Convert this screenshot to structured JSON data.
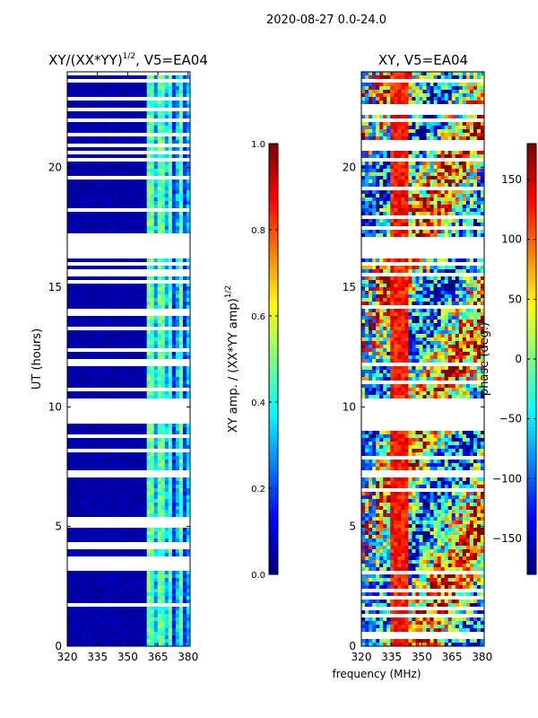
{
  "suptitle": "2020-08-27 0.0-24.0",
  "xlabel": "frequency (MHz)",
  "colors": {
    "jet_stops": [
      "#00007f",
      "#0000ff",
      "#007fff",
      "#00ffff",
      "#7fff7f",
      "#ffff00",
      "#ff7f00",
      "#ff0000",
      "#7f0000"
    ],
    "flag": "#ffffff",
    "axis": "#000000"
  },
  "chart_data": [
    {
      "type": "heatmap",
      "title_main": "XY/(XX*YY)",
      "title_sup": "1/2",
      "title_tail": ", V5=EA04",
      "xlabel": "frequency (MHz)",
      "ylabel": "UT (hours)",
      "xlim": [
        320,
        381
      ],
      "ylim": [
        0,
        24
      ],
      "xticks": [
        320,
        335,
        350,
        365,
        380
      ],
      "yticks": [
        0,
        5,
        10,
        15,
        20
      ],
      "pattern": "amplitude",
      "colorbar": {
        "label": "XY amp. / (XX*YY amp)",
        "label_sup": "1/2",
        "range": [
          0.0,
          1.0
        ],
        "ticks": [
          "0.0",
          "0.2",
          "0.4",
          "0.6",
          "0.8",
          "1.0"
        ],
        "tick_values": [
          0.0,
          0.2,
          0.4,
          0.6,
          0.8,
          1.0
        ]
      },
      "flagged_hours": [
        [
          16.2,
          17.1
        ],
        [
          9.3,
          10.4
        ]
      ]
    },
    {
      "type": "heatmap",
      "title_main": "XY",
      "title_sup": "",
      "title_tail": ", V5=EA04",
      "xlabel": "frequency (MHz)",
      "ylabel": "",
      "xlim": [
        320,
        381
      ],
      "ylim": [
        0,
        24
      ],
      "xticks": [
        320,
        335,
        350,
        365,
        380
      ],
      "yticks": [
        0,
        5,
        10,
        15,
        20
      ],
      "pattern": "phase",
      "colorbar": {
        "label": "phase (deg.)",
        "label_sup": "",
        "range": [
          -180,
          180
        ],
        "ticks": [
          "−150",
          "−100",
          "−50",
          "0",
          "50",
          "100",
          "150"
        ],
        "tick_values": [
          -150,
          -100,
          -50,
          0,
          50,
          100,
          150
        ]
      },
      "flagged_hours": [
        [
          16.2,
          17.1
        ],
        [
          9.3,
          10.4
        ]
      ]
    }
  ]
}
